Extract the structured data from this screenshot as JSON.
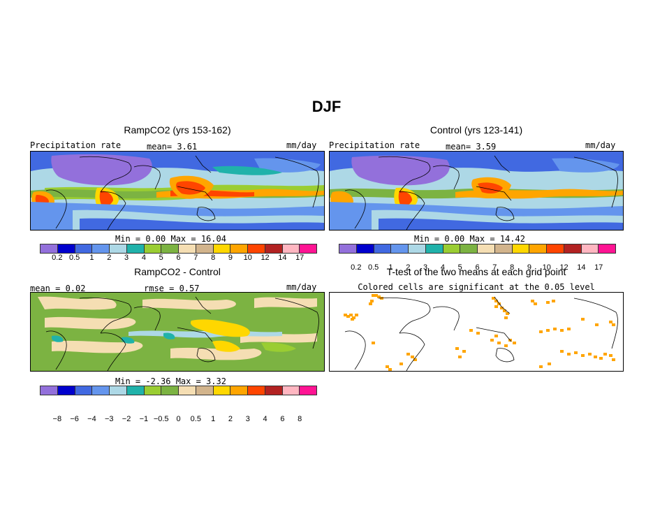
{
  "season_title": "DJF",
  "panels": {
    "ramp": {
      "title": "RampCO2 (yrs 153-162)",
      "var_label": "Precipitation rate",
      "mean_text": "mean=   3.61",
      "units": "mm/day",
      "minmax": "Min =   0.00 Max =  16.04"
    },
    "control": {
      "title": "Control (yrs 123-141)",
      "var_label": "Precipitation rate",
      "mean_text": "mean=   3.59",
      "units": "mm/day",
      "minmax": "Min =   0.00 Max =  14.42"
    },
    "diff": {
      "title": "RampCO2 - Control",
      "mean_text": "mean =   0.02",
      "rmse_text": "rmse =   0.57",
      "units": "mm/day",
      "minmax": "Min =  -2.36 Max =   3.32"
    },
    "ttest": {
      "title": "T-test of the two means at each grid point",
      "subtitle": "Colored cells are significant at the 0.05 level"
    }
  },
  "colorbars": {
    "precip": {
      "colors": [
        "#9370db",
        "#0000cd",
        "#4169e1",
        "#6495ed",
        "#add8e6",
        "#20b2aa",
        "#9acd32",
        "#7cb342",
        "#f5deb3",
        "#d2b48c",
        "#ffd700",
        "#ffa500",
        "#ff4500",
        "#b22222",
        "#ffb6c1",
        "#ff1493"
      ],
      "labels": [
        "0.2",
        "0.5",
        "1",
        "2",
        "3",
        "4",
        "5",
        "6",
        "7",
        "8",
        "9",
        "10",
        "12",
        "14",
        "17"
      ]
    },
    "diff": {
      "colors": [
        "#9370db",
        "#0000cd",
        "#4169e1",
        "#6495ed",
        "#add8e6",
        "#20b2aa",
        "#9acd32",
        "#7cb342",
        "#f5deb3",
        "#d2b48c",
        "#ffd700",
        "#ffa500",
        "#ff4500",
        "#b22222",
        "#ffb6c1",
        "#ff1493"
      ],
      "labels": [
        "−8",
        "−6",
        "−4",
        "−3",
        "−2",
        "−1",
        "−0.5",
        "0",
        "0.5",
        "1",
        "2",
        "3",
        "4",
        "6",
        "8"
      ]
    }
  },
  "ttest_color": "#ffa500"
}
